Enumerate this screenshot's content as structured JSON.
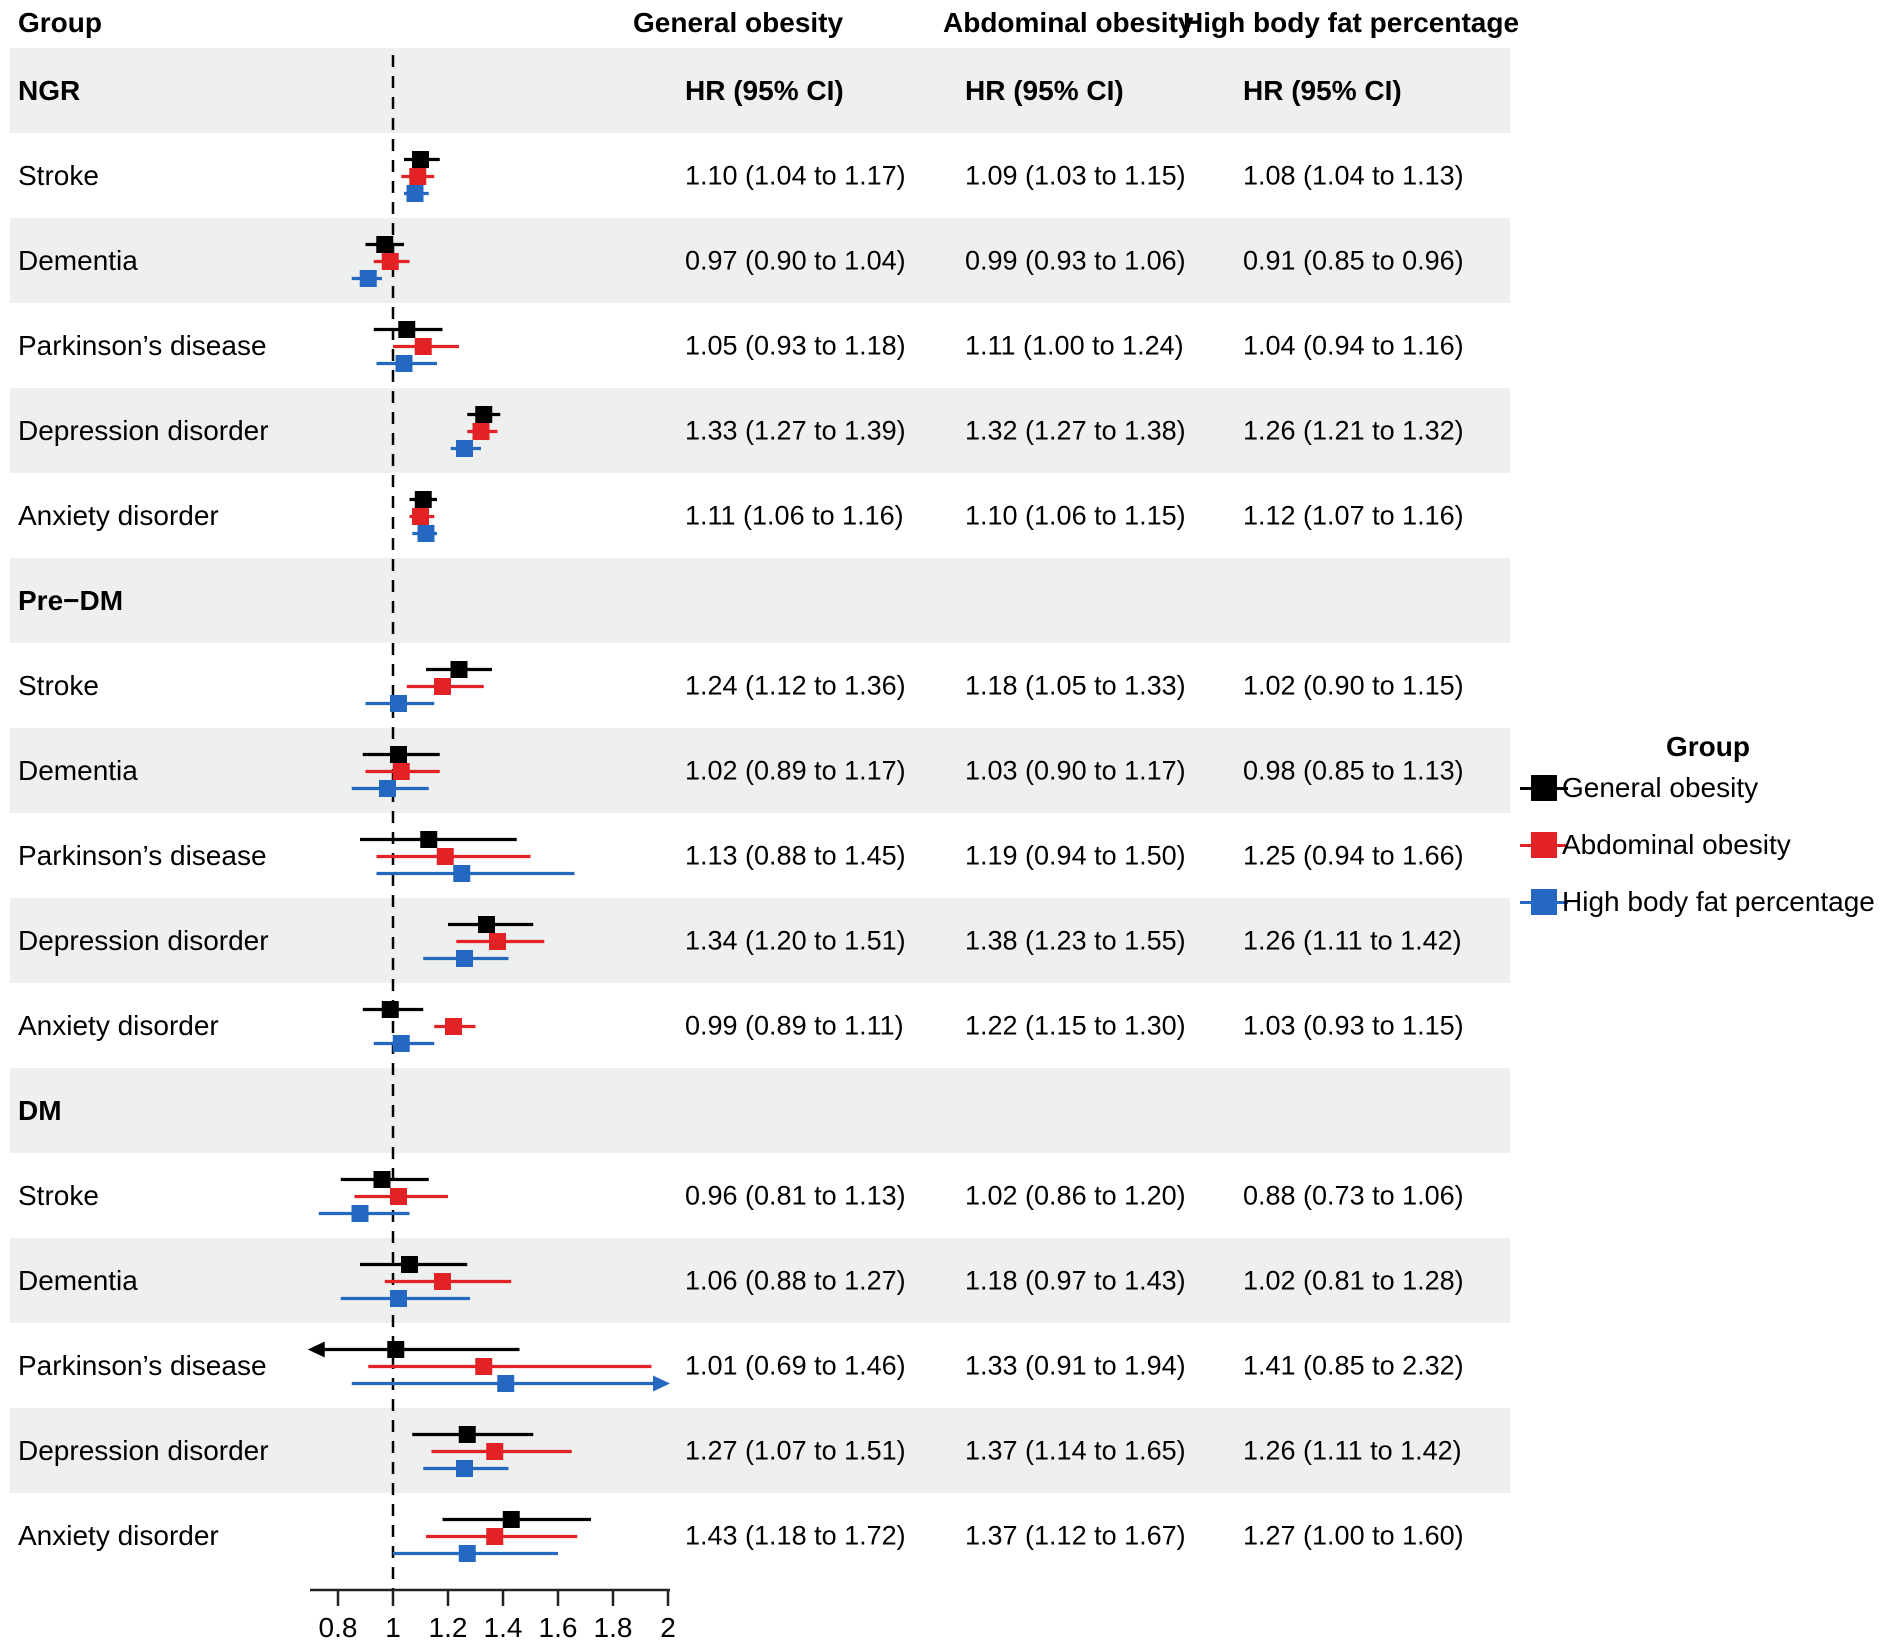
{
  "header": {
    "group_label": "Group",
    "columns": [
      "General obesity",
      "Abdominal obesity",
      "High body fat percentage"
    ],
    "hr_header": "HR (95% CI)"
  },
  "legend": {
    "title": "Group",
    "items": [
      {
        "label": "General obesity",
        "color": "#000000"
      },
      {
        "label": "Abdominal obesity",
        "color": "#e32226"
      },
      {
        "label": "High body fat percentage",
        "color": "#2568c1"
      }
    ]
  },
  "axis": {
    "tick_labels": [
      "0.8",
      "1",
      "1.2",
      "1.4",
      "1.6",
      "1.8",
      "2"
    ],
    "tick_values": [
      0.8,
      1,
      1.2,
      1.4,
      1.6,
      1.8,
      2
    ],
    "xlim": [
      0.72,
      2.0
    ],
    "refline": 1
  },
  "chart_data": {
    "type": "forest",
    "series": [
      "General obesity",
      "Abdominal obesity",
      "High body fat percentage"
    ],
    "series_colors": [
      "#000000",
      "#e32226",
      "#2568c1"
    ],
    "stripe_color": "#edf0ee",
    "sections": [
      {
        "label": "NGR",
        "rows": [
          {
            "label": "Stroke",
            "estimates": [
              {
                "hr": 1.1,
                "lo": 1.04,
                "hi": 1.17,
                "text": "1.10 (1.04 to 1.17)"
              },
              {
                "hr": 1.09,
                "lo": 1.03,
                "hi": 1.15,
                "text": "1.09 (1.03 to 1.15)"
              },
              {
                "hr": 1.08,
                "lo": 1.04,
                "hi": 1.13,
                "text": "1.08 (1.04 to 1.13)"
              }
            ]
          },
          {
            "label": "Dementia",
            "estimates": [
              {
                "hr": 0.97,
                "lo": 0.9,
                "hi": 1.04,
                "text": "0.97 (0.90 to 1.04)"
              },
              {
                "hr": 0.99,
                "lo": 0.93,
                "hi": 1.06,
                "text": "0.99 (0.93 to 1.06)"
              },
              {
                "hr": 0.91,
                "lo": 0.85,
                "hi": 0.96,
                "text": "0.91 (0.85 to 0.96)"
              }
            ]
          },
          {
            "label": "Parkinson’s disease",
            "estimates": [
              {
                "hr": 1.05,
                "lo": 0.93,
                "hi": 1.18,
                "text": "1.05 (0.93 to 1.18)"
              },
              {
                "hr": 1.11,
                "lo": 1.0,
                "hi": 1.24,
                "text": "1.11 (1.00 to 1.24)"
              },
              {
                "hr": 1.04,
                "lo": 0.94,
                "hi": 1.16,
                "text": "1.04 (0.94 to 1.16)"
              }
            ]
          },
          {
            "label": "Depression disorder",
            "estimates": [
              {
                "hr": 1.33,
                "lo": 1.27,
                "hi": 1.39,
                "text": "1.33 (1.27 to 1.39)"
              },
              {
                "hr": 1.32,
                "lo": 1.27,
                "hi": 1.38,
                "text": "1.32 (1.27 to 1.38)"
              },
              {
                "hr": 1.26,
                "lo": 1.21,
                "hi": 1.32,
                "text": "1.26 (1.21 to 1.32)"
              }
            ]
          },
          {
            "label": "Anxiety disorder",
            "estimates": [
              {
                "hr": 1.11,
                "lo": 1.06,
                "hi": 1.16,
                "text": "1.11 (1.06 to 1.16)"
              },
              {
                "hr": 1.1,
                "lo": 1.06,
                "hi": 1.15,
                "text": "1.10 (1.06 to 1.15)"
              },
              {
                "hr": 1.12,
                "lo": 1.07,
                "hi": 1.16,
                "text": "1.12 (1.07 to 1.16)"
              }
            ]
          }
        ]
      },
      {
        "label": "Pre−DM",
        "rows": [
          {
            "label": "Stroke",
            "estimates": [
              {
                "hr": 1.24,
                "lo": 1.12,
                "hi": 1.36,
                "text": "1.24 (1.12 to 1.36)"
              },
              {
                "hr": 1.18,
                "lo": 1.05,
                "hi": 1.33,
                "text": "1.18 (1.05 to 1.33)"
              },
              {
                "hr": 1.02,
                "lo": 0.9,
                "hi": 1.15,
                "text": "1.02 (0.90 to 1.15)"
              }
            ]
          },
          {
            "label": "Dementia",
            "estimates": [
              {
                "hr": 1.02,
                "lo": 0.89,
                "hi": 1.17,
                "text": "1.02 (0.89 to 1.17)"
              },
              {
                "hr": 1.03,
                "lo": 0.9,
                "hi": 1.17,
                "text": "1.03 (0.90 to 1.17)"
              },
              {
                "hr": 0.98,
                "lo": 0.85,
                "hi": 1.13,
                "text": "0.98 (0.85 to 1.13)"
              }
            ]
          },
          {
            "label": "Parkinson’s disease",
            "estimates": [
              {
                "hr": 1.13,
                "lo": 0.88,
                "hi": 1.45,
                "text": "1.13 (0.88 to 1.45)"
              },
              {
                "hr": 1.19,
                "lo": 0.94,
                "hi": 1.5,
                "text": "1.19 (0.94 to 1.50)"
              },
              {
                "hr": 1.25,
                "lo": 0.94,
                "hi": 1.66,
                "text": "1.25 (0.94 to 1.66)"
              }
            ]
          },
          {
            "label": "Depression disorder",
            "estimates": [
              {
                "hr": 1.34,
                "lo": 1.2,
                "hi": 1.51,
                "text": "1.34 (1.20 to 1.51)"
              },
              {
                "hr": 1.38,
                "lo": 1.23,
                "hi": 1.55,
                "text": "1.38 (1.23 to 1.55)"
              },
              {
                "hr": 1.26,
                "lo": 1.11,
                "hi": 1.42,
                "text": "1.26 (1.11 to 1.42)"
              }
            ]
          },
          {
            "label": "Anxiety disorder",
            "estimates": [
              {
                "hr": 0.99,
                "lo": 0.89,
                "hi": 1.11,
                "text": "0.99 (0.89 to 1.11)"
              },
              {
                "hr": 1.22,
                "lo": 1.15,
                "hi": 1.3,
                "text": "1.22 (1.15 to 1.30)"
              },
              {
                "hr": 1.03,
                "lo": 0.93,
                "hi": 1.15,
                "text": "1.03 (0.93 to 1.15)"
              }
            ]
          }
        ]
      },
      {
        "label": "DM",
        "rows": [
          {
            "label": "Stroke",
            "estimates": [
              {
                "hr": 0.96,
                "lo": 0.81,
                "hi": 1.13,
                "text": "0.96 (0.81 to 1.13)"
              },
              {
                "hr": 1.02,
                "lo": 0.86,
                "hi": 1.2,
                "text": "1.02 (0.86 to 1.20)"
              },
              {
                "hr": 0.88,
                "lo": 0.73,
                "hi": 1.06,
                "text": "0.88 (0.73 to 1.06)"
              }
            ]
          },
          {
            "label": "Dementia",
            "estimates": [
              {
                "hr": 1.06,
                "lo": 0.88,
                "hi": 1.27,
                "text": "1.06 (0.88 to 1.27)"
              },
              {
                "hr": 1.18,
                "lo": 0.97,
                "hi": 1.43,
                "text": "1.18 (0.97 to 1.43)"
              },
              {
                "hr": 1.02,
                "lo": 0.81,
                "hi": 1.28,
                "text": "1.02 (0.81 to 1.28)"
              }
            ]
          },
          {
            "label": "Parkinson’s disease",
            "estimates": [
              {
                "hr": 1.01,
                "lo": 0.69,
                "hi": 1.46,
                "text": "1.01 (0.69 to 1.46)",
                "arrow": "lo"
              },
              {
                "hr": 1.33,
                "lo": 0.91,
                "hi": 1.94,
                "text": "1.33 (0.91 to 1.94)"
              },
              {
                "hr": 1.41,
                "lo": 0.85,
                "hi": 2.32,
                "text": "1.41 (0.85 to 2.32)",
                "arrow": "hi"
              }
            ]
          },
          {
            "label": "Depression disorder",
            "estimates": [
              {
                "hr": 1.27,
                "lo": 1.07,
                "hi": 1.51,
                "text": "1.27 (1.07 to 1.51)"
              },
              {
                "hr": 1.37,
                "lo": 1.14,
                "hi": 1.65,
                "text": "1.37 (1.14 to 1.65)"
              },
              {
                "hr": 1.26,
                "lo": 1.11,
                "hi": 1.42,
                "text": "1.26 (1.11 to 1.42)"
              }
            ]
          },
          {
            "label": "Anxiety disorder",
            "estimates": [
              {
                "hr": 1.43,
                "lo": 1.18,
                "hi": 1.72,
                "text": "1.43 (1.18 to 1.72)"
              },
              {
                "hr": 1.37,
                "lo": 1.12,
                "hi": 1.67,
                "text": "1.37 (1.12 to 1.67)"
              },
              {
                "hr": 1.27,
                "lo": 1.0,
                "hi": 1.6,
                "text": "1.27 (1.00 to 1.60)"
              }
            ]
          }
        ]
      }
    ]
  }
}
